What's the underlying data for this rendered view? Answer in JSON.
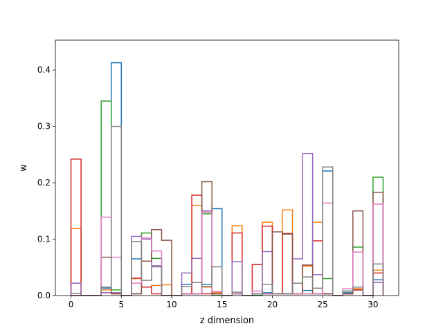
{
  "chart_data": {
    "type": "step-histogram",
    "title": "",
    "xlabel": "z dimension",
    "ylabel": "w",
    "xlim": [
      -1.55,
      32.55
    ],
    "ylim": [
      0,
      0.453
    ],
    "xticks": [
      0,
      5,
      10,
      15,
      20,
      25,
      30
    ],
    "yticks": [
      0.0,
      0.1,
      0.2,
      0.3,
      0.4
    ],
    "ytick_labels": [
      "0.0",
      "0.1",
      "0.2",
      "0.3",
      "0.4"
    ],
    "xtick_labels": [
      "0",
      "5",
      "10",
      "15",
      "20",
      "25",
      "30"
    ],
    "grid": false,
    "legend": "none",
    "bin_edges": [
      0,
      1,
      2,
      3,
      4,
      5,
      6,
      7,
      8,
      9,
      10,
      11,
      12,
      13,
      14,
      15,
      16,
      17,
      18,
      19,
      20,
      21,
      22,
      23,
      24,
      25,
      26,
      27,
      28,
      29,
      30,
      31
    ],
    "series": [
      {
        "color": "#1f77b4",
        "values": [
          0,
          0,
          0,
          0.013,
          0.413,
          0,
          0.065,
          0.015,
          0.018,
          0,
          0,
          0.02,
          0.003,
          0.02,
          0.154,
          0,
          0.003,
          0,
          0,
          0.005,
          0.003,
          0.003,
          0.003,
          0.009,
          0.003,
          0.221,
          0,
          0.005,
          0.01,
          0,
          0.028
        ]
      },
      {
        "color": "#ff7f0e",
        "values": [
          0.119,
          0,
          0,
          0.01,
          0.005,
          0,
          0.03,
          0.015,
          0.018,
          0.019,
          0,
          0.003,
          0.16,
          0.015,
          0.005,
          0,
          0.124,
          0,
          0.003,
          0.13,
          0.003,
          0.152,
          0.003,
          0.052,
          0.13,
          0.003,
          0,
          0.003,
          0.012,
          0,
          0.045
        ]
      },
      {
        "color": "#2ca02c",
        "values": [
          0,
          0,
          0,
          0.345,
          0.01,
          0,
          0.003,
          0.111,
          0.066,
          0,
          0,
          0.003,
          0.003,
          0.145,
          0,
          0,
          0.003,
          0,
          0,
          0.003,
          0.003,
          0.003,
          0.003,
          0.003,
          0.003,
          0.03,
          0,
          0.008,
          0.086,
          0,
          0.21
        ]
      },
      {
        "color": "#d62728",
        "values": [
          0.242,
          0,
          0,
          0.005,
          0.003,
          0,
          0.031,
          0.015,
          0.003,
          0,
          0,
          0.003,
          0.178,
          0.003,
          0.003,
          0,
          0.111,
          0,
          0.055,
          0.123,
          0.003,
          0.11,
          0.003,
          0.054,
          0.097,
          0.003,
          0,
          0.003,
          0.01,
          0,
          0.04
        ]
      },
      {
        "color": "#9467bd",
        "values": [
          0.022,
          0,
          0,
          0.005,
          0.005,
          0,
          0.105,
          0.1,
          0.053,
          0,
          0,
          0.04,
          0.066,
          0.15,
          0.003,
          0,
          0.06,
          0,
          0.003,
          0.078,
          0.003,
          0.003,
          0.065,
          0.252,
          0.037,
          0.003,
          0,
          0.003,
          0.015,
          0,
          0.023
        ]
      },
      {
        "color": "#8c564b",
        "values": [
          0,
          0,
          0,
          0.068,
          0.003,
          0,
          0.003,
          0.061,
          0.117,
          0.098,
          0,
          0.003,
          0.003,
          0.202,
          0.003,
          0,
          0.003,
          0,
          0.003,
          0.003,
          0.113,
          0.109,
          0.003,
          0.054,
          0.003,
          0.003,
          0,
          0.003,
          0.15,
          0,
          0.183
        ]
      },
      {
        "color": "#e377c2",
        "values": [
          0,
          0,
          0,
          0.139,
          0.068,
          0,
          0.022,
          0.102,
          0.079,
          0,
          0,
          0.003,
          0.003,
          0.148,
          0.007,
          0,
          0.003,
          0,
          0.008,
          0.003,
          0.003,
          0.003,
          0.003,
          0.003,
          0.003,
          0.164,
          0,
          0.012,
          0.077,
          0,
          0.162
        ]
      },
      {
        "color": "#7f7f7f",
        "values": [
          0.004,
          0,
          0,
          0.015,
          0.3,
          0,
          0.096,
          0.027,
          0.051,
          0,
          0,
          0.016,
          0.023,
          0.016,
          0.051,
          0,
          0.006,
          0,
          0.003,
          0.02,
          0.003,
          0.003,
          0.022,
          0.033,
          0.013,
          0.228,
          0,
          0.008,
          0.015,
          0,
          0.056
        ]
      }
    ]
  }
}
